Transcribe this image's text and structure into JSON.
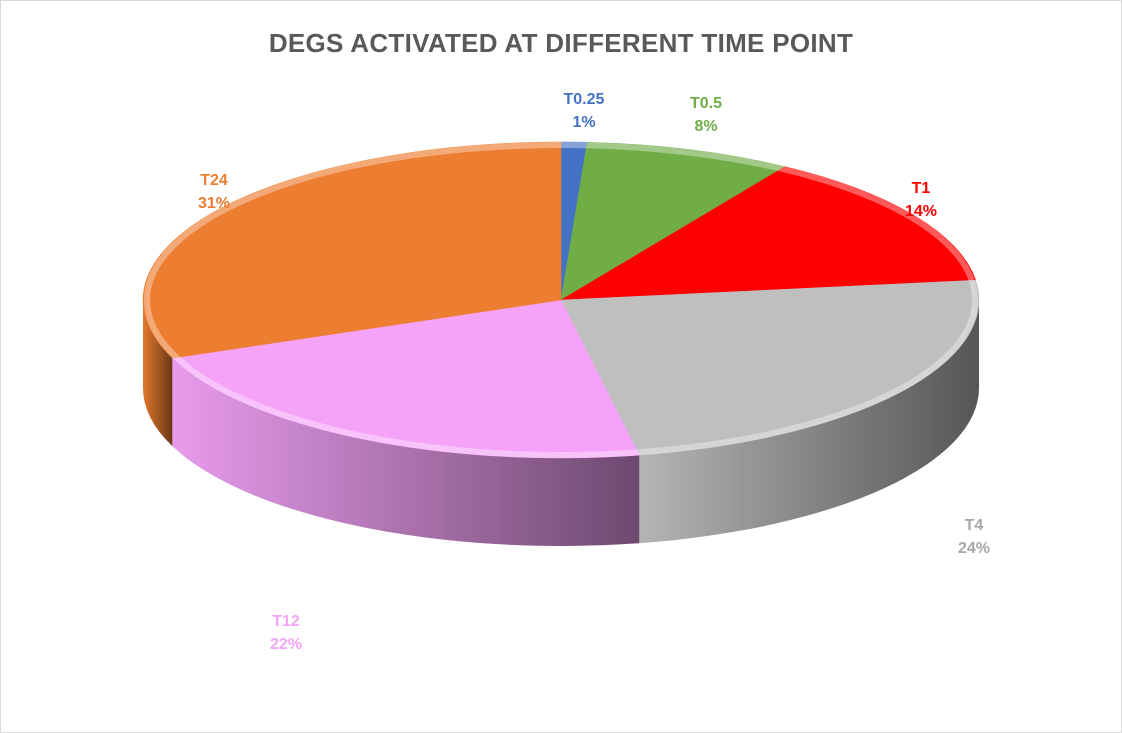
{
  "chart_data": {
    "type": "pie",
    "title": "DEGS ACTIVATED AT DIFFERENT TIME POINT",
    "slices": [
      {
        "label": "T0.25",
        "value": 1,
        "percent_label": "1%",
        "color": "#4472C4"
      },
      {
        "label": "T0.5",
        "value": 8,
        "percent_label": "8%",
        "color": "#70AD47"
      },
      {
        "label": "T1",
        "value": 14,
        "percent_label": "14%",
        "color": "#FF0000"
      },
      {
        "label": "T4",
        "value": 24,
        "percent_label": "24%",
        "color": "#BFBFBF"
      },
      {
        "label": "T12",
        "value": 22,
        "percent_label": "22%",
        "color": "#F4A3F8"
      },
      {
        "label": "T24",
        "value": 31,
        "percent_label": "31%",
        "color": "#ED7D31"
      }
    ],
    "legend": "none",
    "style": "3d"
  }
}
